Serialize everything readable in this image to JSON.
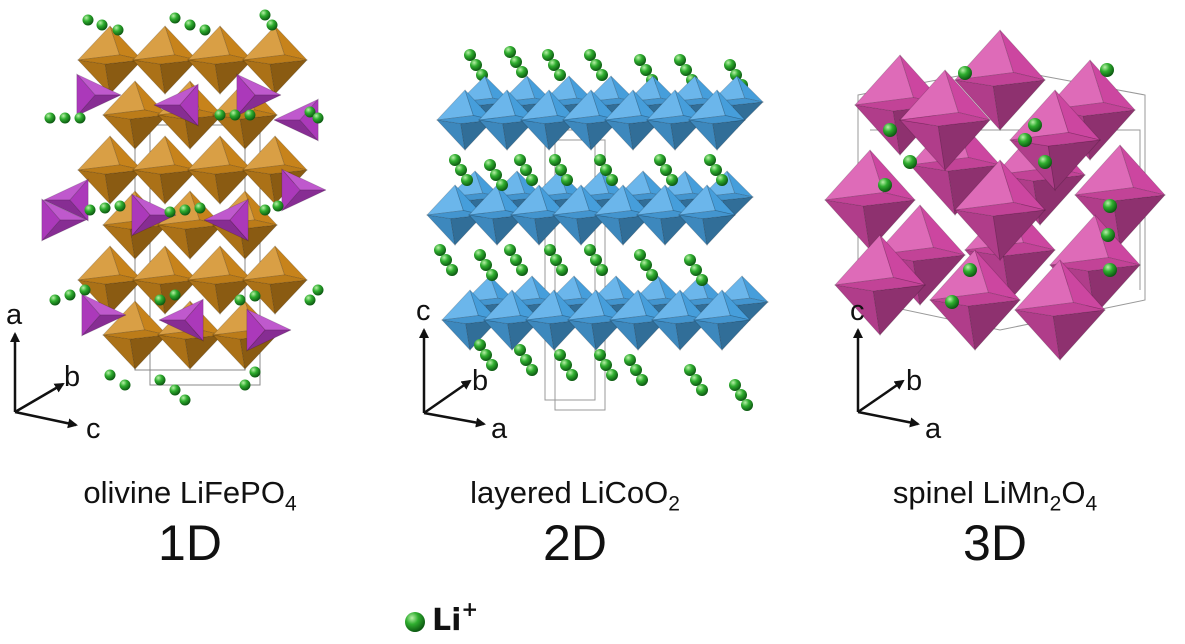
{
  "colors": {
    "li_sphere": "#2aa52a",
    "olivine_octahedra": "#d18a1c",
    "olivine_tetrahedra": "#b43cc4",
    "layered_octahedra": "#4aa6e6",
    "spinel_octahedra": "#d74aa8"
  },
  "panels": [
    {
      "compound_prefix": "olivine LiFePO",
      "compound_sub": "4",
      "dimensionality": "1D",
      "axes": {
        "up": "a",
        "diag": "b",
        "right": "c"
      }
    },
    {
      "compound_prefix": "layered LiCoO",
      "compound_sub": "2",
      "dimensionality": "2D",
      "axes": {
        "up": "c",
        "diag": "b",
        "right": "a"
      }
    },
    {
      "compound_prefix": "spinel LiMn",
      "compound_sub": "2",
      "compound_mid": "O",
      "compound_sub2": "4",
      "dimensionality": "3D",
      "axes": {
        "up": "c",
        "diag": "b",
        "right": "a"
      }
    }
  ],
  "legend": {
    "symbol": "Li",
    "charge": "+"
  }
}
